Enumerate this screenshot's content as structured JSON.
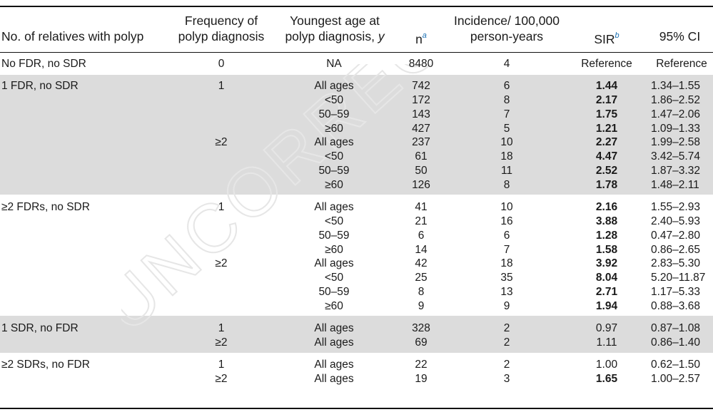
{
  "headers": {
    "label": "No. of relatives with polyp",
    "freq_line1": "Frequency of",
    "freq_line2": "polyp diagnosis",
    "age_line1": "Youngest age at",
    "age_line2": "polyp diagnosis,",
    "age_unit": "y",
    "n": "n",
    "n_sup": "a",
    "inc_line1": "Incidence/ 100,000",
    "inc_line2": "person-years",
    "sir": "SIR",
    "sir_sup": "b",
    "ci": "95% CI"
  },
  "watermark": "UNCORRECTED",
  "rows": [
    {
      "label": "No FDR, no SDR",
      "freq": "0",
      "age": "NA",
      "n": "8480",
      "inc": "4",
      "sir": "Reference",
      "ci": "Reference",
      "bold": false
    },
    {
      "label": "1 FDR, no SDR",
      "freq": "1",
      "age": "All ages",
      "n": "742",
      "inc": "6",
      "sir": "1.44",
      "ci": "1.34–1.55",
      "bold": true
    },
    {
      "label": "",
      "freq": "",
      "age": "<50",
      "n": "172",
      "inc": "8",
      "sir": "2.17",
      "ci": "1.86–2.52",
      "bold": true
    },
    {
      "label": "",
      "freq": "",
      "age": "50–59",
      "n": "143",
      "inc": "7",
      "sir": "1.75",
      "ci": "1.47–2.06",
      "bold": true
    },
    {
      "label": "",
      "freq": "",
      "age": "≥60",
      "n": "427",
      "inc": "5",
      "sir": "1.21",
      "ci": "1.09–1.33",
      "bold": true
    },
    {
      "label": "",
      "freq": "≥2",
      "age": "All ages",
      "n": "237",
      "inc": "10",
      "sir": "2.27",
      "ci": "1.99–2.58",
      "bold": true
    },
    {
      "label": "",
      "freq": "",
      "age": "<50",
      "n": "61",
      "inc": "18",
      "sir": "4.47",
      "ci": "3.42–5.74",
      "bold": true
    },
    {
      "label": "",
      "freq": "",
      "age": "50–59",
      "n": "50",
      "inc": "11",
      "sir": "2.52",
      "ci": "1.87–3.32",
      "bold": true
    },
    {
      "label": "",
      "freq": "",
      "age": "≥60",
      "n": "126",
      "inc": "8",
      "sir": "1.78",
      "ci": "1.48–2.11",
      "bold": true
    },
    {
      "label": "≥2 FDRs, no SDR",
      "freq": "1",
      "age": "All ages",
      "n": "41",
      "inc": "10",
      "sir": "2.16",
      "ci": "1.55–2.93",
      "bold": true
    },
    {
      "label": "",
      "freq": "",
      "age": "<50",
      "n": "21",
      "inc": "16",
      "sir": "3.88",
      "ci": "2.40–5.93",
      "bold": true
    },
    {
      "label": "",
      "freq": "",
      "age": "50–59",
      "n": "6",
      "inc": "6",
      "sir": "1.28",
      "ci": "0.47–2.80",
      "bold": true
    },
    {
      "label": "",
      "freq": "",
      "age": "≥60",
      "n": "14",
      "inc": "7",
      "sir": "1.58",
      "ci": "0.86–2.65",
      "bold": true
    },
    {
      "label": "",
      "freq": "≥2",
      "age": "All ages",
      "n": "42",
      "inc": "18",
      "sir": "3.92",
      "ci": "2.83–5.30",
      "bold": true
    },
    {
      "label": "",
      "freq": "",
      "age": "<50",
      "n": "25",
      "inc": "35",
      "sir": "8.04",
      "ci": "5.20–11.87",
      "bold": true
    },
    {
      "label": "",
      "freq": "",
      "age": "50–59",
      "n": "8",
      "inc": "13",
      "sir": "2.71",
      "ci": "1.17–5.33",
      "bold": true
    },
    {
      "label": "",
      "freq": "",
      "age": "≥60",
      "n": "9",
      "inc": "9",
      "sir": "1.94",
      "ci": "0.88–3.68",
      "bold": true
    },
    {
      "label": "1 SDR, no FDR",
      "freq": "1",
      "age": "All ages",
      "n": "328",
      "inc": "2",
      "sir": "0.97",
      "ci": "0.87–1.08",
      "bold": false
    },
    {
      "label": "",
      "freq": "≥2",
      "age": "All ages",
      "n": "69",
      "inc": "2",
      "sir": "1.11",
      "ci": "0.86–1.40",
      "bold": false
    },
    {
      "label": "≥2 SDRs, no FDR",
      "freq": "1",
      "age": "All ages",
      "n": "22",
      "inc": "2",
      "sir": "1.00",
      "ci": "0.62–1.50",
      "bold": false
    },
    {
      "label": "",
      "freq": "≥2",
      "age": "All ages",
      "n": "19",
      "inc": "3",
      "sir": "1.65",
      "ci": "1.00–2.57",
      "bold": true
    }
  ]
}
